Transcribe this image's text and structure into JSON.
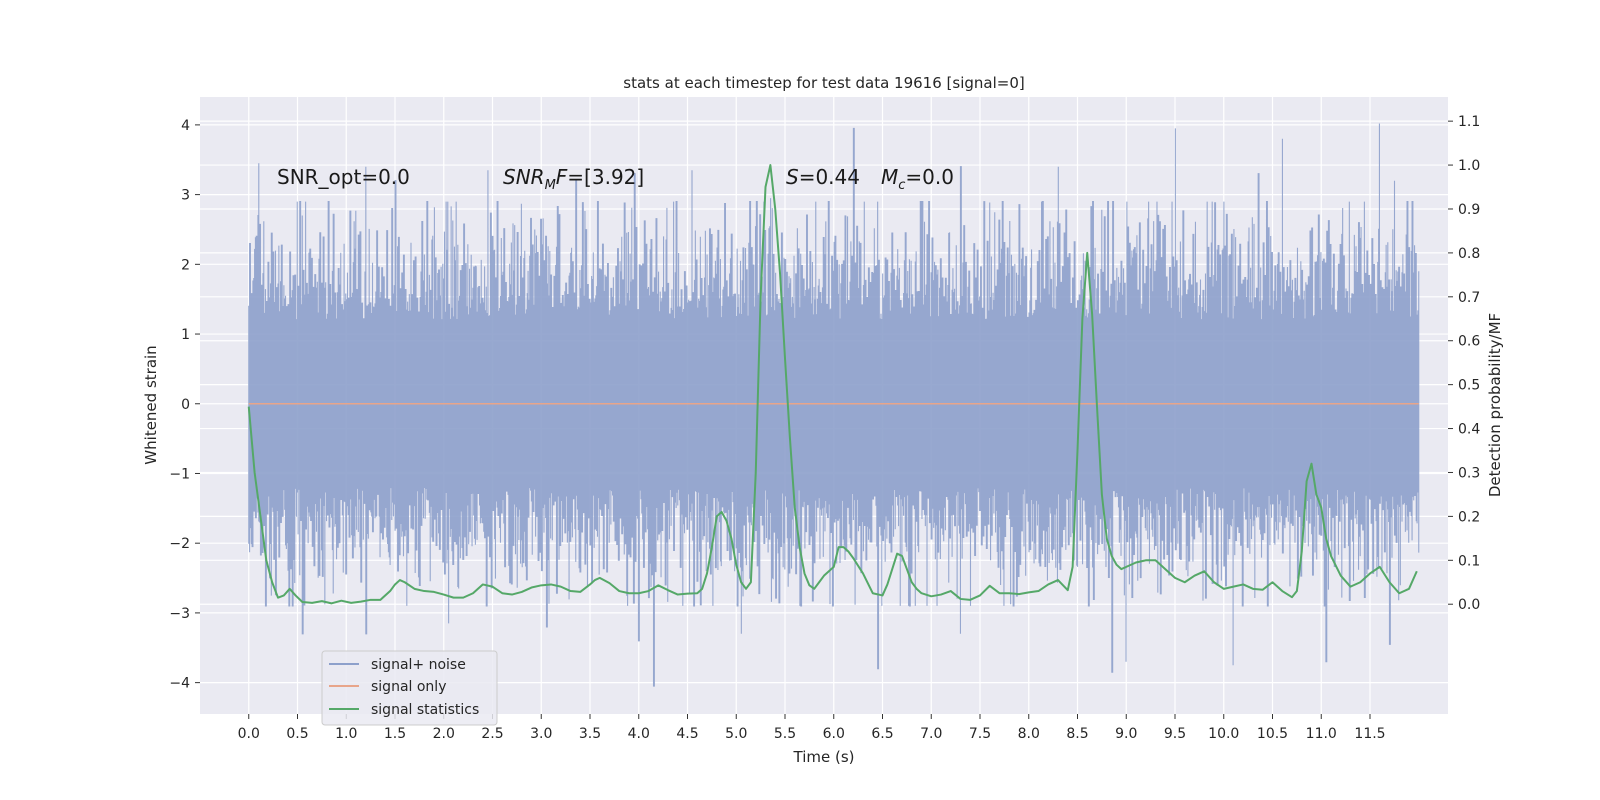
{
  "chart_data": {
    "type": "line",
    "title": "stats at each timestep for test data 19616 [signal=0]",
    "xlabel": "Time (s)",
    "ylabel": "Whitened strain",
    "ylabel_right": "Detection probability/MF",
    "xlim": [
      -0.5,
      12.3
    ],
    "ylim": [
      -4.45,
      4.4
    ],
    "ylim_right": [
      -0.25,
      1.155
    ],
    "x_ticks": [
      0.0,
      0.5,
      1.0,
      1.5,
      2.0,
      2.5,
      3.0,
      3.5,
      4.0,
      4.5,
      5.0,
      5.5,
      6.0,
      6.5,
      7.0,
      7.5,
      8.0,
      8.5,
      9.0,
      9.5,
      10.0,
      10.5,
      11.0,
      11.5
    ],
    "x_tick_labels": [
      "0.0",
      "0.5",
      "1.0",
      "1.5",
      "2.0",
      "2.5",
      "3.0",
      "3.5",
      "4.0",
      "4.5",
      "5.0",
      "5.5",
      "6.0",
      "6.5",
      "7.0",
      "7.5",
      "8.0",
      "8.5",
      "9.0",
      "9.5",
      "10.0",
      "10.5",
      "11.0",
      "11.5"
    ],
    "y_ticks": [
      -4,
      -3,
      -2,
      -1,
      0,
      1,
      2,
      3,
      4
    ],
    "y_tick_labels": [
      "−4",
      "−3",
      "−2",
      "−1",
      "0",
      "1",
      "2",
      "3",
      "4"
    ],
    "y_ticks_right": [
      0.0,
      0.1,
      0.2,
      0.3,
      0.4,
      0.5,
      0.6,
      0.7,
      0.8,
      0.9,
      1.0,
      1.1
    ],
    "y_tick_labels_right": [
      "0.0",
      "0.1",
      "0.2",
      "0.3",
      "0.4",
      "0.5",
      "0.6",
      "0.7",
      "0.8",
      "0.9",
      "1.0",
      "1.1"
    ],
    "grid": true,
    "legend_position": "lower-left",
    "series": [
      {
        "name": "signal+ noise",
        "axis": "left",
        "color": "#8da0cb",
        "description_range": [
          -4.05,
          4.0
        ],
        "t_range": [
          0.0,
          12.0
        ],
        "peaks": [
          [
            0.1,
            3.45
          ],
          [
            0.55,
            2.7
          ],
          [
            1.2,
            3.4
          ],
          [
            1.5,
            3.2
          ],
          [
            2.45,
            3.35
          ],
          [
            3.35,
            3.2
          ],
          [
            3.95,
            3.3
          ],
          [
            4.55,
            3.35
          ],
          [
            5.35,
            2.95
          ],
          [
            6.2,
            3.95
          ],
          [
            7.3,
            3.4
          ],
          [
            8.3,
            3.4
          ],
          [
            9.5,
            3.95
          ],
          [
            10.35,
            3.3
          ],
          [
            10.6,
            3.8
          ],
          [
            11.6,
            4.02
          ],
          [
            11.75,
            3.2
          ]
        ],
        "troughs": [
          [
            0.55,
            -3.3
          ],
          [
            1.2,
            -3.3
          ],
          [
            2.05,
            -3.15
          ],
          [
            3.05,
            -3.2
          ],
          [
            4.0,
            -3.4
          ],
          [
            4.15,
            -4.05
          ],
          [
            5.05,
            -3.3
          ],
          [
            6.45,
            -3.8
          ],
          [
            7.3,
            -3.3
          ],
          [
            8.85,
            -3.85
          ],
          [
            9.0,
            -3.7
          ],
          [
            10.1,
            -3.75
          ],
          [
            11.05,
            -3.7
          ],
          [
            11.7,
            -3.45
          ]
        ]
      },
      {
        "name": "signal only",
        "axis": "left",
        "color": "#e8a58a",
        "x": [
          0.0,
          12.0
        ],
        "y": [
          0.0,
          0.0
        ]
      },
      {
        "name": "signal statistics",
        "axis": "right",
        "color": "#55a868",
        "x": [
          0.0,
          0.06,
          0.12,
          0.18,
          0.24,
          0.3,
          0.36,
          0.42,
          0.48,
          0.55,
          0.65,
          0.75,
          0.85,
          0.95,
          1.05,
          1.15,
          1.25,
          1.35,
          1.45,
          1.5,
          1.55,
          1.6,
          1.7,
          1.8,
          1.9,
          2.0,
          2.1,
          2.2,
          2.3,
          2.4,
          2.5,
          2.6,
          2.7,
          2.8,
          2.9,
          3.0,
          3.1,
          3.2,
          3.3,
          3.4,
          3.5,
          3.55,
          3.6,
          3.7,
          3.8,
          3.9,
          4.0,
          4.1,
          4.2,
          4.3,
          4.4,
          4.5,
          4.6,
          4.65,
          4.7,
          4.75,
          4.8,
          4.85,
          4.9,
          4.95,
          5.0,
          5.05,
          5.1,
          5.15,
          5.2,
          5.25,
          5.3,
          5.35,
          5.4,
          5.45,
          5.5,
          5.55,
          5.6,
          5.65,
          5.7,
          5.75,
          5.8,
          5.85,
          5.9,
          5.95,
          6.0,
          6.05,
          6.1,
          6.15,
          6.2,
          6.3,
          6.4,
          6.5,
          6.55,
          6.6,
          6.65,
          6.7,
          6.75,
          6.8,
          6.85,
          6.9,
          7.0,
          7.1,
          7.2,
          7.3,
          7.4,
          7.5,
          7.6,
          7.7,
          7.8,
          7.9,
          8.0,
          8.1,
          8.2,
          8.3,
          8.4,
          8.45,
          8.5,
          8.55,
          8.6,
          8.65,
          8.7,
          8.75,
          8.8,
          8.85,
          8.9,
          8.95,
          9.0,
          9.1,
          9.2,
          9.3,
          9.4,
          9.5,
          9.6,
          9.7,
          9.8,
          9.9,
          10.0,
          10.1,
          10.2,
          10.3,
          10.4,
          10.5,
          10.6,
          10.7,
          10.75,
          10.8,
          10.85,
          10.9,
          10.95,
          11.0,
          11.05,
          11.1,
          11.2,
          11.3,
          11.4,
          11.5,
          11.6,
          11.7,
          11.8,
          11.9,
          11.98
        ],
        "y": [
          0.45,
          0.3,
          0.2,
          0.1,
          0.05,
          0.015,
          0.02,
          0.035,
          0.02,
          0.005,
          0.003,
          0.007,
          0.002,
          0.008,
          0.003,
          0.006,
          0.01,
          0.01,
          0.03,
          0.045,
          0.055,
          0.05,
          0.035,
          0.03,
          0.028,
          0.022,
          0.015,
          0.015,
          0.025,
          0.045,
          0.04,
          0.025,
          0.022,
          0.028,
          0.038,
          0.043,
          0.045,
          0.04,
          0.03,
          0.028,
          0.045,
          0.055,
          0.06,
          0.048,
          0.03,
          0.025,
          0.025,
          0.03,
          0.043,
          0.032,
          0.022,
          0.024,
          0.025,
          0.035,
          0.07,
          0.13,
          0.2,
          0.21,
          0.19,
          0.15,
          0.09,
          0.05,
          0.035,
          0.05,
          0.3,
          0.7,
          0.95,
          1.0,
          0.9,
          0.75,
          0.56,
          0.38,
          0.22,
          0.13,
          0.07,
          0.043,
          0.035,
          0.05,
          0.065,
          0.075,
          0.085,
          0.13,
          0.13,
          0.12,
          0.105,
          0.07,
          0.025,
          0.02,
          0.045,
          0.08,
          0.115,
          0.11,
          0.08,
          0.05,
          0.035,
          0.025,
          0.018,
          0.022,
          0.03,
          0.012,
          0.01,
          0.02,
          0.042,
          0.025,
          0.025,
          0.023,
          0.027,
          0.03,
          0.045,
          0.055,
          0.032,
          0.085,
          0.35,
          0.65,
          0.8,
          0.66,
          0.45,
          0.25,
          0.15,
          0.11,
          0.09,
          0.08,
          0.085,
          0.095,
          0.1,
          0.1,
          0.08,
          0.06,
          0.05,
          0.065,
          0.075,
          0.05,
          0.035,
          0.04,
          0.045,
          0.035,
          0.033,
          0.05,
          0.03,
          0.016,
          0.03,
          0.12,
          0.28,
          0.32,
          0.25,
          0.22,
          0.15,
          0.11,
          0.065,
          0.04,
          0.05,
          0.07,
          0.085,
          0.05,
          0.025,
          0.035,
          0.075
        ]
      }
    ],
    "annotations": [
      {
        "id": "snr_opt",
        "text": "SNR_opt=0.0"
      },
      {
        "id": "snr_mf",
        "prefix": "SNR",
        "sub": "M",
        "suffix": "F",
        "tail": "=[3.92]"
      },
      {
        "id": "s_stat",
        "prefix": "S",
        "tail": "=0.44"
      },
      {
        "id": "mc",
        "prefix": "M",
        "sub": "c",
        "tail": "=0.0"
      }
    ]
  }
}
